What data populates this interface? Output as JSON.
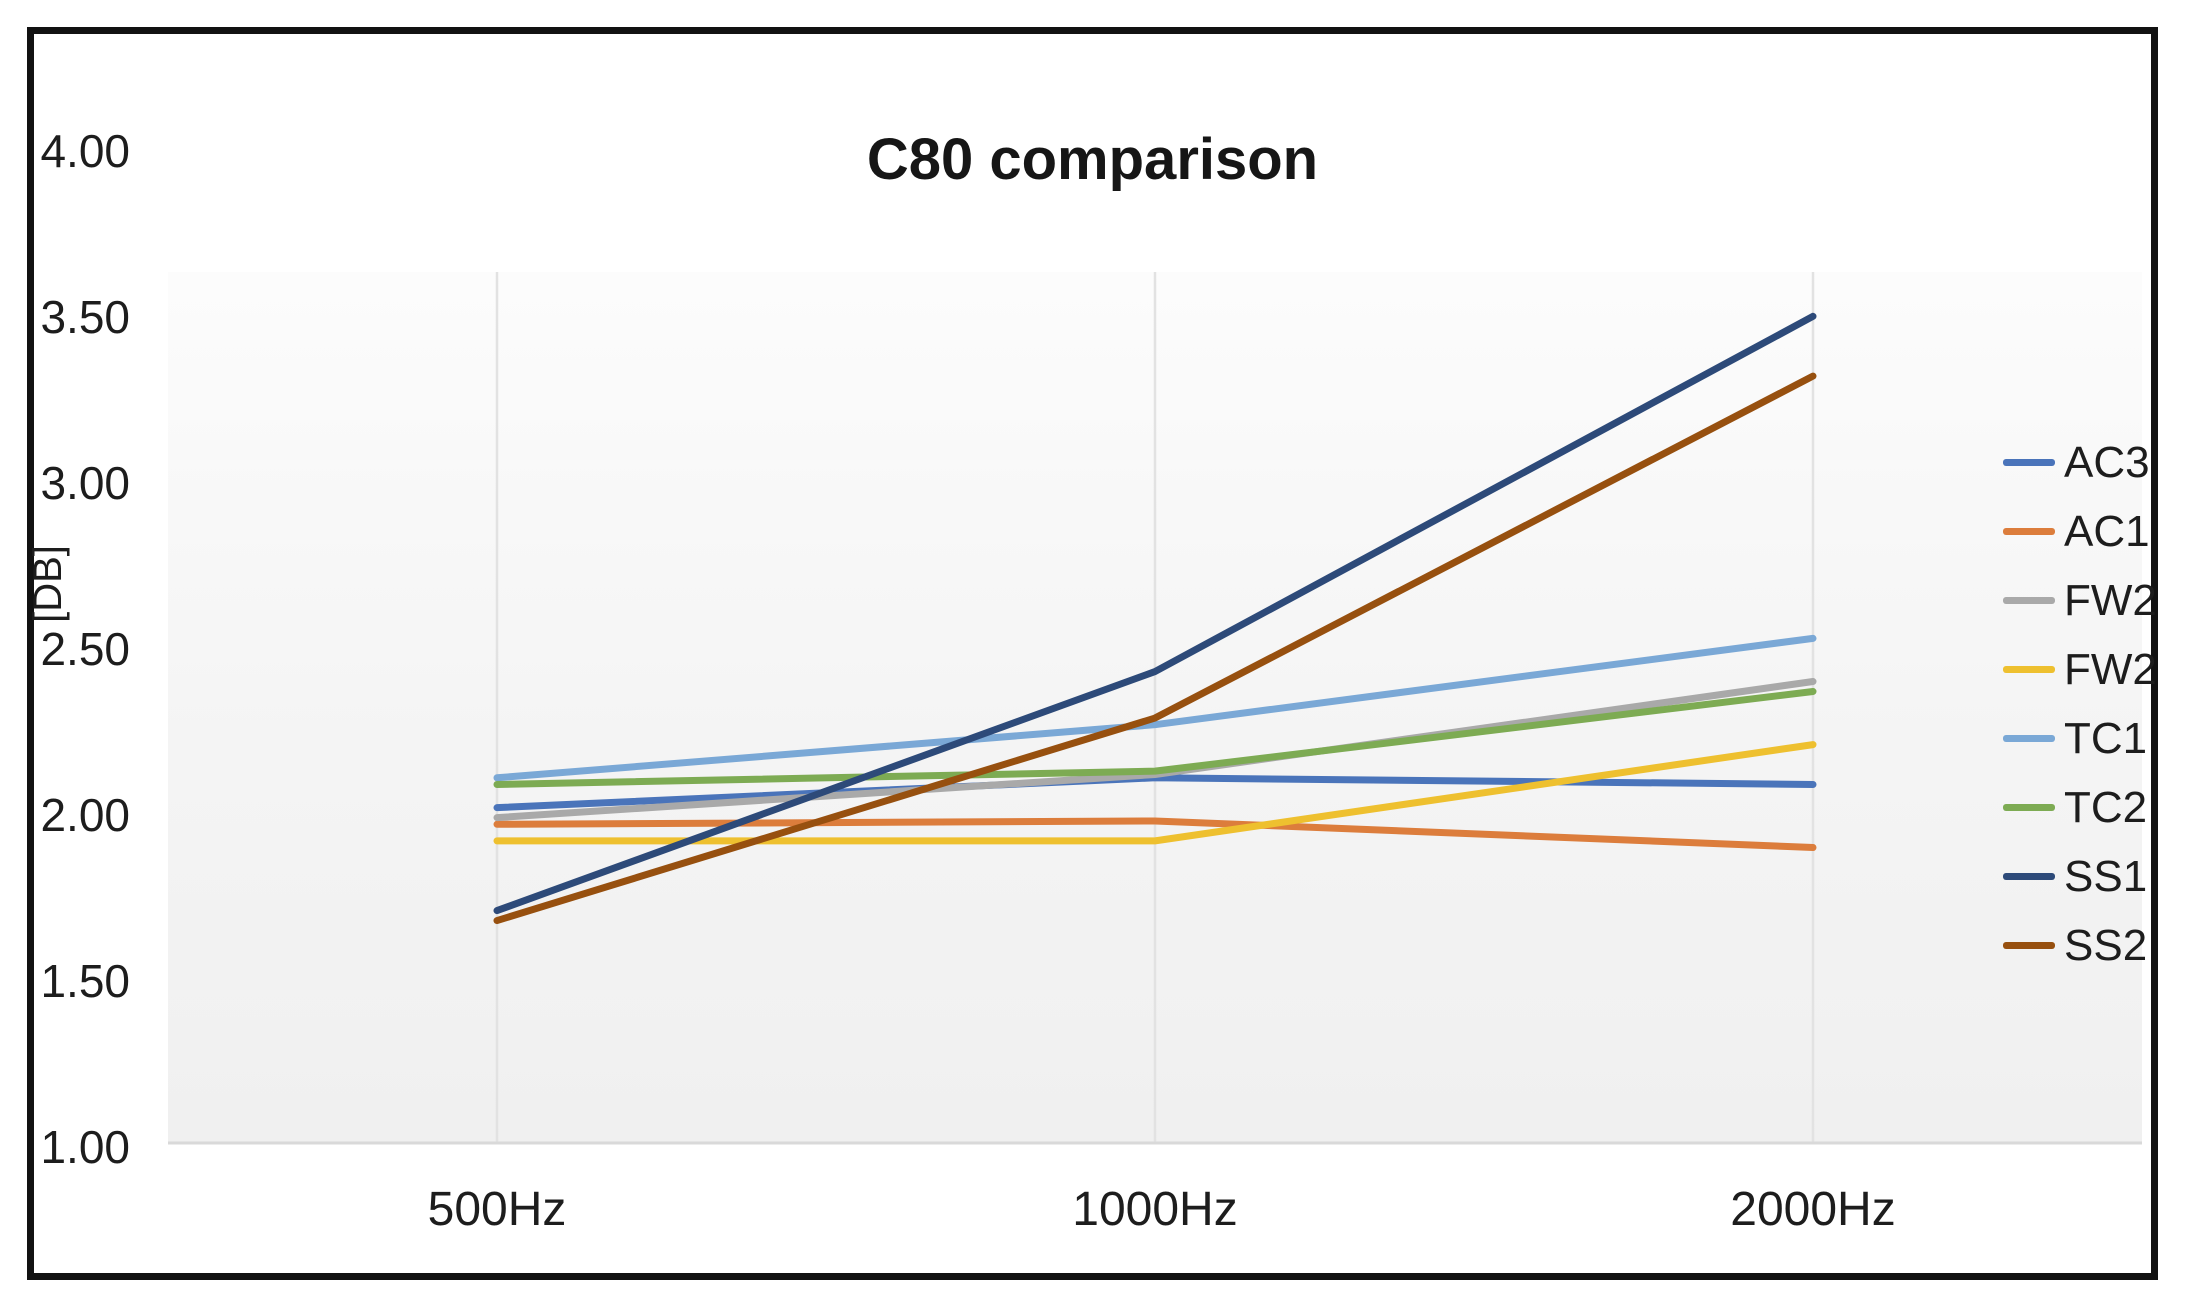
{
  "chart_data": {
    "type": "line",
    "title": "C80 comparison",
    "ylabel": "[DB]",
    "xlabel": "",
    "categories": [
      "500Hz",
      "1000Hz",
      "2000Hz"
    ],
    "ylim": [
      1.0,
      4.0
    ],
    "y_ticks": [
      "1.00",
      "1.50",
      "2.00",
      "2.50",
      "3.00",
      "3.50",
      "4.00"
    ],
    "grid": "vertical-category-gridlines-only",
    "legend_position": "right",
    "series": [
      {
        "name": "AC3",
        "color": "#4a74ba",
        "values": [
          2.01,
          2.1,
          2.08
        ]
      },
      {
        "name": "AC1",
        "color": "#dc7d3c",
        "values": [
          1.96,
          1.97,
          1.89
        ]
      },
      {
        "name": "FW2",
        "color": "#a9a9a9",
        "values": [
          1.98,
          2.11,
          2.39
        ]
      },
      {
        "name": "FW2",
        "color": "#eec02f",
        "values": [
          1.91,
          1.91,
          2.2
        ]
      },
      {
        "name": "TC1",
        "color": "#7aa8d6",
        "values": [
          2.1,
          2.26,
          2.52
        ]
      },
      {
        "name": "TC2",
        "color": "#7dab53",
        "values": [
          2.08,
          2.12,
          2.36
        ]
      },
      {
        "name": "SS1",
        "color": "#2d4a79",
        "values": [
          1.7,
          2.42,
          3.49
        ]
      },
      {
        "name": "SS2",
        "color": "#97500f",
        "values": [
          1.67,
          2.28,
          3.31
        ]
      }
    ],
    "plot_bg_color": "#f1f1f1",
    "frame_border_color": "#121212"
  }
}
